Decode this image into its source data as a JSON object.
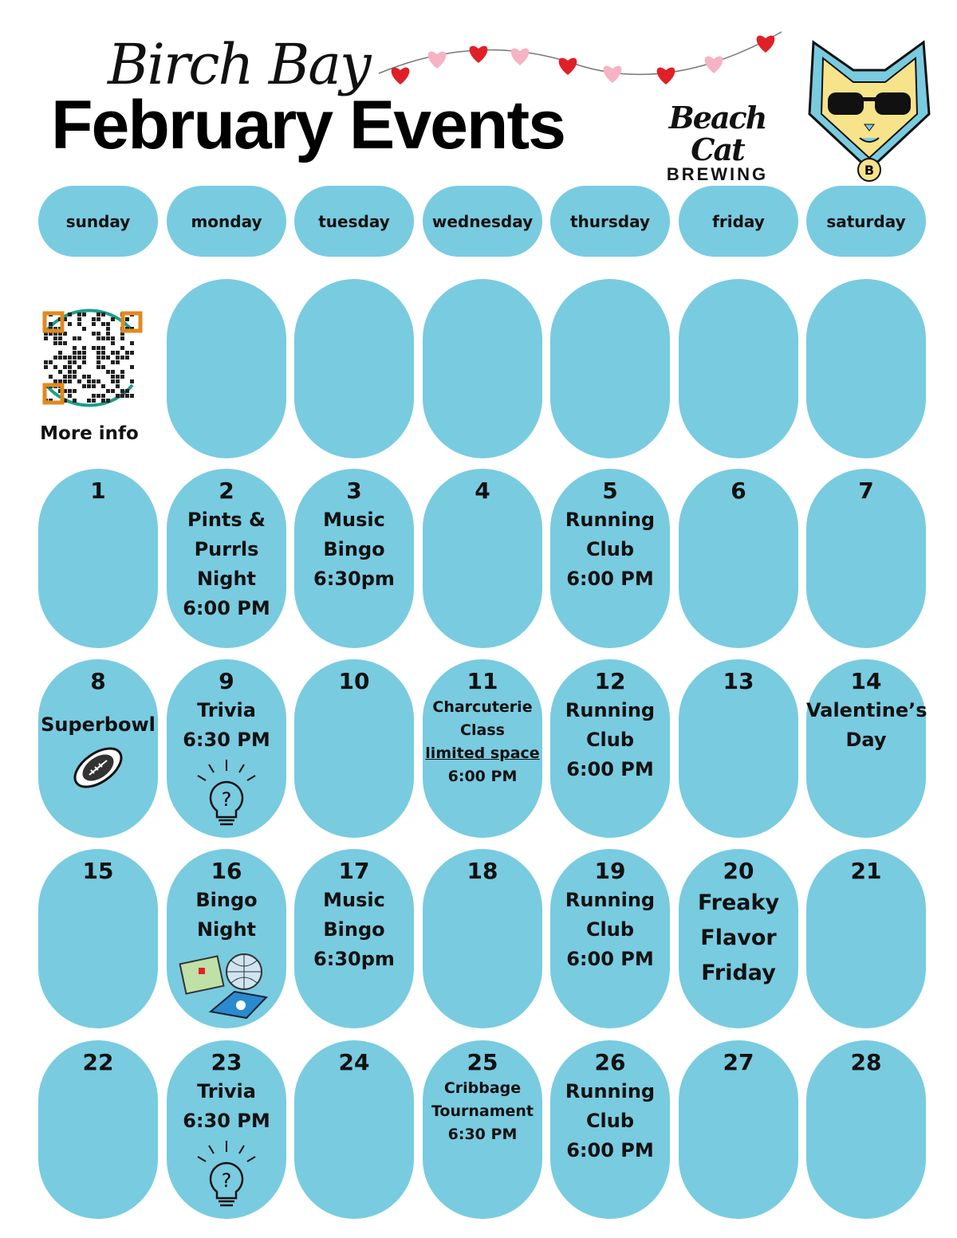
{
  "header": {
    "script_title": "Birch Bay",
    "title": "February Events",
    "brand_line1": "Beach Cat",
    "brand_line2": "BREWING",
    "decoration": "heart-garland",
    "logo": "sunglasses-cat-logo"
  },
  "colors": {
    "cell": "#79cbe0",
    "heart_red": "#e02027",
    "heart_pink": "#f6b3c4",
    "text": "#111111"
  },
  "weekdays": [
    "sunday",
    "monday",
    "tuesday",
    "wednesday",
    "thursday",
    "friday",
    "saturday"
  ],
  "qr": {
    "label": "More info",
    "icon": "qr-code-icon"
  },
  "weeks": [
    [
      {
        "day": "1",
        "lines": []
      },
      {
        "day": "2",
        "lines": [
          {
            "text": "Pints &"
          },
          {
            "text": "Purrls"
          },
          {
            "text": "Night"
          },
          {
            "text": "6:00 PM"
          }
        ]
      },
      {
        "day": "3",
        "lines": [
          {
            "text": "Music"
          },
          {
            "text": "Bingo"
          },
          {
            "text": "6:30pm"
          }
        ]
      },
      {
        "day": "4",
        "lines": []
      },
      {
        "day": "5",
        "lines": [
          {
            "text": "Running"
          },
          {
            "text": "Club"
          },
          {
            "text": "6:00 PM"
          }
        ]
      },
      {
        "day": "6",
        "lines": []
      },
      {
        "day": "7",
        "lines": []
      }
    ],
    [
      {
        "day": "8",
        "lines": [
          {
            "text": "Superbowl"
          }
        ],
        "text_size": "medium",
        "icon": "football-icon"
      },
      {
        "day": "9",
        "lines": [
          {
            "text": "Trivia"
          },
          {
            "text": "6:30 PM"
          }
        ],
        "icon": "lightbulb-question-icon"
      },
      {
        "day": "10",
        "lines": []
      },
      {
        "day": "11",
        "lines": [
          {
            "text": "Charcuterie"
          },
          {
            "text": "Class"
          },
          {
            "text": "limited space",
            "underline": true
          },
          {
            "text": "6:00 PM"
          }
        ],
        "text_size": "small"
      },
      {
        "day": "12",
        "lines": [
          {
            "text": "Running"
          },
          {
            "text": "Club"
          },
          {
            "text": "6:00 PM"
          }
        ]
      },
      {
        "day": "13",
        "lines": []
      },
      {
        "day": "14",
        "lines": [
          {
            "text": "Valentine’s"
          },
          {
            "text": "Day"
          }
        ]
      }
    ],
    [
      {
        "day": "15",
        "lines": []
      },
      {
        "day": "16",
        "lines": [
          {
            "text": "Bingo"
          },
          {
            "text": "Night"
          }
        ],
        "icon": "bingo-icon"
      },
      {
        "day": "17",
        "lines": [
          {
            "text": "Music"
          },
          {
            "text": "Bingo"
          },
          {
            "text": "6:30pm"
          }
        ]
      },
      {
        "day": "18",
        "lines": []
      },
      {
        "day": "19",
        "lines": [
          {
            "text": "Running"
          },
          {
            "text": "Club"
          },
          {
            "text": "6:00 PM"
          }
        ]
      },
      {
        "day": "20",
        "lines": [
          {
            "text": "Freaky"
          },
          {
            "text": "Flavor"
          },
          {
            "text": "Friday"
          }
        ],
        "text_size": "large"
      },
      {
        "day": "21",
        "lines": []
      }
    ],
    [
      {
        "day": "22",
        "lines": []
      },
      {
        "day": "23",
        "lines": [
          {
            "text": "Trivia"
          },
          {
            "text": "6:30 PM"
          }
        ],
        "icon": "lightbulb-question-icon"
      },
      {
        "day": "24",
        "lines": []
      },
      {
        "day": "25",
        "lines": [
          {
            "text": "Cribbage"
          },
          {
            "text": "Tournament"
          },
          {
            "text": "6:30 PM"
          }
        ],
        "text_size": "small"
      },
      {
        "day": "26",
        "lines": [
          {
            "text": "Running"
          },
          {
            "text": "Club"
          },
          {
            "text": "6:00 PM"
          }
        ]
      },
      {
        "day": "27",
        "lines": []
      },
      {
        "day": "28",
        "lines": []
      }
    ]
  ]
}
